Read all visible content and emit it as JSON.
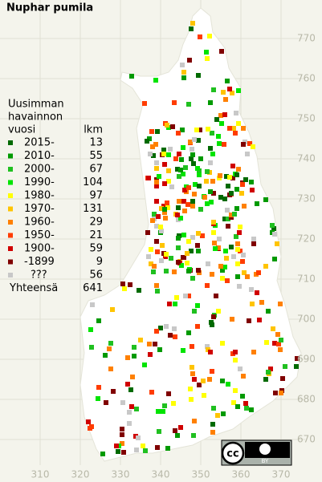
{
  "title": "Nuphar pumila",
  "legend": {
    "heading": [
      "Uusimman",
      "havainnon",
      "vuosi"
    ],
    "count_heading": "lkm",
    "items": [
      {
        "label": "2015-",
        "count": "13",
        "color": "#006a00"
      },
      {
        "label": "2010-",
        "count": "55",
        "color": "#009a00"
      },
      {
        "label": "2000-",
        "count": "67",
        "color": "#20c020"
      },
      {
        "label": "1990-",
        "count": "104",
        "color": "#00e400"
      },
      {
        "label": "1980-",
        "count": "97",
        "color": "#ffff00"
      },
      {
        "label": "1970-",
        "count": "131",
        "color": "#ffc400"
      },
      {
        "label": "1960-",
        "count": "29",
        "color": "#ff8000"
      },
      {
        "label": "1950-",
        "count": "21",
        "color": "#ff3c00"
      },
      {
        "label": "1900-",
        "count": "59",
        "color": "#d00000"
      },
      {
        "label": "-1899",
        "count": "9",
        "color": "#800000"
      },
      {
        "label": "???",
        "count": "56",
        "color": "#c8c8c8"
      }
    ],
    "total_label": "Yhteensä",
    "total": "641"
  },
  "x_axis": {
    "ticks": [
      "310",
      "320",
      "330",
      "340",
      "350",
      "360",
      "370"
    ]
  },
  "y_axis": {
    "ticks": [
      "670",
      "680",
      "690",
      "700",
      "710",
      "720",
      "730",
      "740",
      "750",
      "760",
      "770"
    ]
  },
  "license_badge": {
    "cc": "cc",
    "by": "BY"
  }
}
